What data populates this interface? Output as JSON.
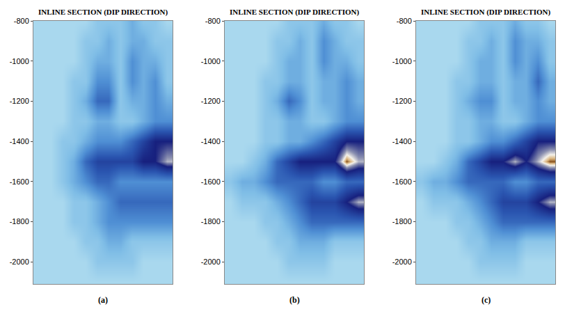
{
  "chart_data": [
    {
      "type": "heatmap",
      "title": "INLINE SECTION (DIP DIRECTION)",
      "caption": "(a)",
      "tick_labels": "y",
      "xlim": [
        -0.5,
        11.5
      ],
      "ylim": [
        -2110,
        -800
      ],
      "yticks": [
        -800,
        -1000,
        -1200,
        -1400,
        -1600,
        -1800,
        -2000
      ],
      "zlim": [
        0,
        10
      ],
      "x": [
        0,
        1,
        2,
        3,
        4,
        5,
        6,
        7,
        8,
        9,
        10,
        11
      ],
      "y": [
        -800,
        -900,
        -1000,
        -1100,
        -1200,
        -1300,
        -1400,
        -1500,
        -1600,
        -1700,
        -1800,
        -1900,
        -2000,
        -2100
      ],
      "z": [
        [
          2,
          2,
          2,
          2,
          2,
          3,
          3,
          3,
          4,
          3,
          3,
          2
        ],
        [
          2,
          2,
          2,
          2,
          3,
          3,
          4,
          3,
          4,
          4,
          3,
          3
        ],
        [
          2,
          2,
          2,
          2,
          3,
          4,
          4,
          3,
          5,
          4,
          4,
          3
        ],
        [
          2,
          2,
          2,
          3,
          3,
          5,
          5,
          3,
          5,
          4,
          5,
          3
        ],
        [
          2,
          2,
          2,
          3,
          4,
          6,
          6,
          3,
          4,
          4,
          5,
          4
        ],
        [
          2,
          2,
          2,
          3,
          3,
          4,
          4,
          3,
          3,
          4,
          5,
          5
        ],
        [
          2,
          2,
          3,
          3,
          4,
          5,
          5,
          5,
          6,
          7,
          8,
          8
        ],
        [
          2,
          2,
          3,
          4,
          6,
          7,
          7,
          7,
          7,
          8,
          8,
          9
        ],
        [
          2,
          2,
          3,
          4,
          5,
          6,
          6,
          5,
          5,
          5,
          5,
          5
        ],
        [
          2,
          2,
          2,
          3,
          3,
          4,
          5,
          6,
          6,
          6,
          6,
          6
        ],
        [
          2,
          2,
          2,
          3,
          3,
          4,
          5,
          5,
          5,
          5,
          5,
          5
        ],
        [
          2,
          2,
          2,
          2,
          3,
          3,
          4,
          4,
          3,
          3,
          3,
          3
        ],
        [
          2,
          2,
          2,
          2,
          2,
          3,
          3,
          3,
          3,
          2,
          2,
          2
        ],
        [
          2,
          2,
          2,
          2,
          2,
          2,
          2,
          2,
          2,
          2,
          2,
          2
        ]
      ]
    },
    {
      "type": "heatmap",
      "title": "INLINE SECTION (DIP DIRECTION)",
      "caption": "(b)",
      "tick_labels": "y",
      "xlim": [
        -0.5,
        11.5
      ],
      "ylim": [
        -2110,
        -800
      ],
      "yticks": [
        -800,
        -1000,
        -1200,
        -1400,
        -1600,
        -1800,
        -2000
      ],
      "zlim": [
        0,
        10
      ],
      "x": [
        0,
        1,
        2,
        3,
        4,
        5,
        6,
        7,
        8,
        9,
        10,
        11
      ],
      "y": [
        -800,
        -900,
        -1000,
        -1100,
        -1200,
        -1300,
        -1400,
        -1500,
        -1600,
        -1700,
        -1800,
        -1900,
        -2000,
        -2100
      ],
      "z": [
        [
          2,
          2,
          2,
          2,
          2,
          3,
          3,
          3,
          4,
          3,
          3,
          2
        ],
        [
          2,
          2,
          2,
          2,
          3,
          3,
          4,
          3,
          5,
          4,
          3,
          3
        ],
        [
          2,
          2,
          2,
          2,
          3,
          4,
          4,
          3,
          5,
          4,
          4,
          3
        ],
        [
          2,
          2,
          2,
          3,
          3,
          4,
          4,
          3,
          4,
          4,
          5,
          4
        ],
        [
          2,
          2,
          2,
          3,
          4,
          6,
          5,
          3,
          4,
          4,
          5,
          4
        ],
        [
          2,
          2,
          2,
          3,
          3,
          4,
          4,
          3,
          3,
          4,
          5,
          5
        ],
        [
          2,
          2,
          2,
          3,
          3,
          4,
          4,
          5,
          6,
          7,
          8,
          8
        ],
        [
          2,
          2,
          3,
          4,
          6,
          7,
          8,
          8,
          8,
          8,
          10,
          9
        ],
        [
          3,
          4,
          4,
          5,
          6,
          6,
          6,
          6,
          5,
          5,
          6,
          6
        ],
        [
          2,
          3,
          3,
          3,
          4,
          5,
          6,
          7,
          7,
          7,
          8,
          9
        ],
        [
          2,
          2,
          2,
          3,
          3,
          4,
          5,
          6,
          6,
          6,
          6,
          6
        ],
        [
          2,
          2,
          2,
          2,
          3,
          3,
          4,
          4,
          4,
          3,
          3,
          3
        ],
        [
          2,
          2,
          2,
          2,
          2,
          3,
          3,
          3,
          3,
          2,
          2,
          2
        ],
        [
          2,
          2,
          2,
          2,
          2,
          2,
          2,
          2,
          2,
          2,
          2,
          2
        ]
      ]
    },
    {
      "type": "heatmap",
      "title": "INLINE SECTION (DIP DIRECTION)",
      "caption": "(c)",
      "tick_labels": "y",
      "xlim": [
        -0.5,
        11.5
      ],
      "ylim": [
        -2110,
        -800
      ],
      "yticks": [
        -800,
        -1000,
        -1200,
        -1400,
        -1600,
        -1800,
        -2000
      ],
      "zlim": [
        0,
        10
      ],
      "x": [
        0,
        1,
        2,
        3,
        4,
        5,
        6,
        7,
        8,
        9,
        10,
        11
      ],
      "y": [
        -800,
        -900,
        -1000,
        -1100,
        -1200,
        -1300,
        -1400,
        -1500,
        -1600,
        -1700,
        -1800,
        -1900,
        -2000,
        -2100
      ],
      "z": [
        [
          2,
          2,
          2,
          2,
          2,
          3,
          3,
          3,
          4,
          3,
          3,
          2
        ],
        [
          2,
          2,
          2,
          2,
          3,
          3,
          4,
          3,
          5,
          4,
          4,
          3
        ],
        [
          2,
          2,
          2,
          2,
          3,
          4,
          4,
          3,
          5,
          4,
          5,
          3
        ],
        [
          2,
          2,
          2,
          3,
          3,
          4,
          4,
          3,
          4,
          4,
          6,
          4
        ],
        [
          2,
          2,
          2,
          3,
          4,
          5,
          5,
          3,
          4,
          4,
          5,
          4
        ],
        [
          2,
          2,
          2,
          3,
          3,
          4,
          4,
          3,
          3,
          4,
          5,
          5
        ],
        [
          2,
          2,
          2,
          3,
          3,
          4,
          5,
          5,
          6,
          7,
          8,
          8
        ],
        [
          2,
          2,
          3,
          4,
          6,
          7,
          8,
          8,
          9,
          8,
          9,
          10
        ],
        [
          3,
          4,
          4,
          5,
          6,
          6,
          6,
          6,
          5,
          5,
          6,
          6
        ],
        [
          2,
          3,
          3,
          3,
          4,
          5,
          6,
          7,
          7,
          7,
          8,
          9
        ],
        [
          2,
          2,
          2,
          3,
          3,
          4,
          5,
          6,
          6,
          6,
          6,
          6
        ],
        [
          2,
          2,
          2,
          2,
          3,
          3,
          4,
          4,
          4,
          3,
          3,
          3
        ],
        [
          2,
          2,
          2,
          2,
          2,
          3,
          3,
          3,
          3,
          2,
          2,
          2
        ],
        [
          2,
          2,
          2,
          2,
          2,
          2,
          2,
          2,
          2,
          2,
          2,
          2
        ]
      ]
    }
  ]
}
